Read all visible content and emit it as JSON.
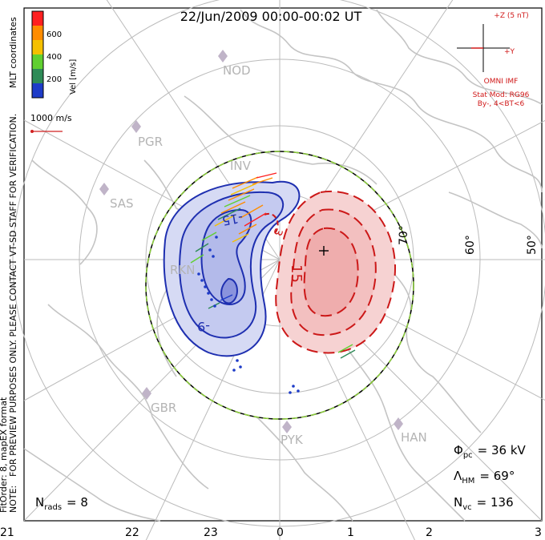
{
  "header": {
    "title": "22/Jun/2009 00:00-00:02 UT"
  },
  "side_notes": {
    "top_left": "MLT coordinates",
    "staff_note": "FOR PREVIEW PURPOSES ONLY. PLEASE CONTACT VT-SD STAFF FOR VERIFICATION.",
    "note": "NOTE:",
    "fit": "FitOrder: 8,  mapEX format"
  },
  "colorbar": {
    "label": "Vel [m/s]",
    "ticks": [
      "600",
      "400",
      "200"
    ],
    "colors": [
      "#ff2020",
      "#ff8c00",
      "#f5c000",
      "#60d030",
      "#2e8b57",
      "#1e3cc8"
    ]
  },
  "scale_vector": {
    "label": "1000 m/s",
    "color": "#d02020"
  },
  "imf_panel": {
    "z_label": "+Z (5 nT)",
    "y_label": "+Y",
    "source": "OMNI IMF",
    "model": "Stat Mod: RG96",
    "bins": "By-, 4<BT<6",
    "color": "#d01818"
  },
  "stations": [
    "NOD",
    "PGR",
    "INV",
    "SAS",
    "RKN",
    "GBR",
    "PYK",
    "HAN"
  ],
  "latitude_labels": [
    "70°",
    "60°",
    "50°"
  ],
  "contours": {
    "negative_label": "-15",
    "negative_label_2": "-9",
    "positive_label": "15",
    "positive_label_2": "3",
    "negative_fill": "#c8cdf0",
    "positive_fill": "#f4c4c4",
    "negative_line": "#1e2fb0",
    "positive_line": "#cc1818"
  },
  "stats": {
    "phi_symbol": "Φ",
    "phi_sub": "pc",
    "phi_value": "= 36 kV",
    "lambda_symbol": "Λ",
    "lambda_sub": "HM",
    "lambda_value": "= 69°",
    "nvc_symbol": "N",
    "nvc_sub": "vc",
    "nvc_value": "= 136",
    "nrads_symbol": "N",
    "nrads_sub": "rads",
    "nrads_value": "= 8"
  },
  "mlt_axis": [
    "21",
    "22",
    "23",
    "0",
    "1",
    "2",
    "3"
  ]
}
